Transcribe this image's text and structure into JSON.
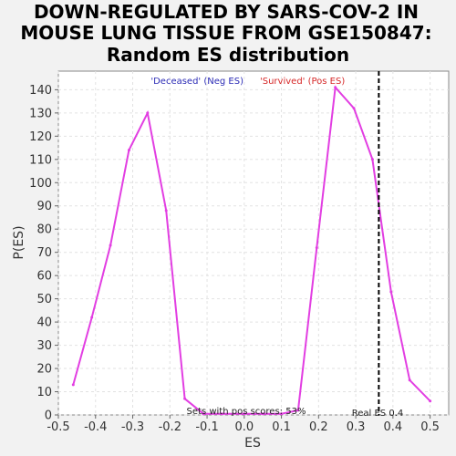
{
  "chart_data": {
    "type": "line",
    "title_lines": [
      "DOWN-REGULATED BY SARS-COV-2 IN",
      "MOUSE LUNG TISSUE FROM GSE150847:",
      "Random ES distribution"
    ],
    "xlabel": "ES",
    "ylabel": "P(ES)",
    "xlim": [
      -0.5,
      0.55
    ],
    "ylim": [
      0,
      148
    ],
    "x_ticks": [
      -0.5,
      -0.4,
      -0.3,
      -0.2,
      -0.1,
      0.0,
      0.1,
      0.2,
      0.3,
      0.4,
      0.5
    ],
    "x_tick_labels": [
      "-0.5",
      "-0.4",
      "-0.3",
      "-0.2",
      "-0.1",
      "0.0",
      "0.1",
      "0.2",
      "0.3",
      "0.4",
      "0.5"
    ],
    "y_ticks": [
      0,
      10,
      20,
      30,
      40,
      50,
      60,
      70,
      80,
      90,
      100,
      110,
      120,
      130,
      140
    ],
    "y_tick_labels": [
      "0",
      "10",
      "20",
      "30",
      "40",
      "50",
      "60",
      "70",
      "80",
      "90",
      "100",
      "110",
      "120",
      "130",
      "140"
    ],
    "grid": true,
    "legend": [
      {
        "label": "'Deceased' (Neg ES)",
        "color": "#2b2bb5"
      },
      {
        "label": "'Survived' (Pos ES)",
        "color": "#d62828"
      }
    ],
    "series": [
      {
        "color": "#e23ee2",
        "x": [
          -0.46,
          -0.41,
          -0.36,
          -0.31,
          -0.26,
          -0.21,
          -0.16,
          -0.11,
          -0.06,
          0.0,
          0.05,
          0.1,
          0.145,
          0.195,
          0.245,
          0.295,
          0.345,
          0.395,
          0.445,
          0.5
        ],
        "y": [
          13,
          42,
          73,
          114,
          130,
          88,
          7,
          0.5,
          0.5,
          0.5,
          0.5,
          0.5,
          2,
          72,
          141,
          132,
          110,
          53,
          15,
          6
        ]
      }
    ],
    "real_es": {
      "x": 0.362,
      "color": "#000000"
    },
    "annotations": {
      "pos_scores": "Sets with pos scores: 53%",
      "real_es": "Real ES 0.4"
    }
  }
}
